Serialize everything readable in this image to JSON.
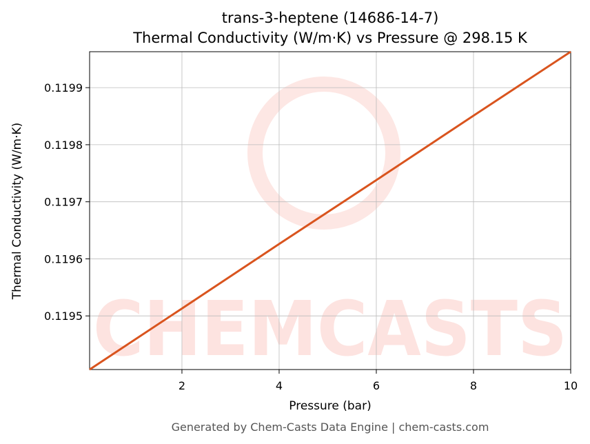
{
  "chart_data": {
    "type": "line",
    "title": "trans-3-heptene (14686-14-7)",
    "subtitle": "Thermal Conductivity (W/m·K) vs Pressure @ 298.15 K",
    "x_label": "Pressure (bar)",
    "y_label": "Thermal Conductivity (W/m·K)",
    "footer": "Generated by Chem-Casts Data Engine | chem-casts.com",
    "watermark": "CHEMCASTS",
    "x": [
      0.1,
      2,
      4,
      6,
      8,
      10
    ],
    "series": [
      {
        "name": "Thermal Conductivity",
        "color": "#d9541e",
        "values": [
          0.119406,
          0.119513,
          0.119626,
          0.119738,
          0.119851,
          0.119963
        ]
      }
    ],
    "xlim": [
      0.1,
      10
    ],
    "ylim": [
      0.119406,
      0.119963
    ],
    "xticks": [
      2,
      4,
      6,
      8,
      10
    ],
    "yticks": [
      0.1195,
      0.1196,
      0.1197,
      0.1198,
      0.1199
    ],
    "grid": true
  }
}
